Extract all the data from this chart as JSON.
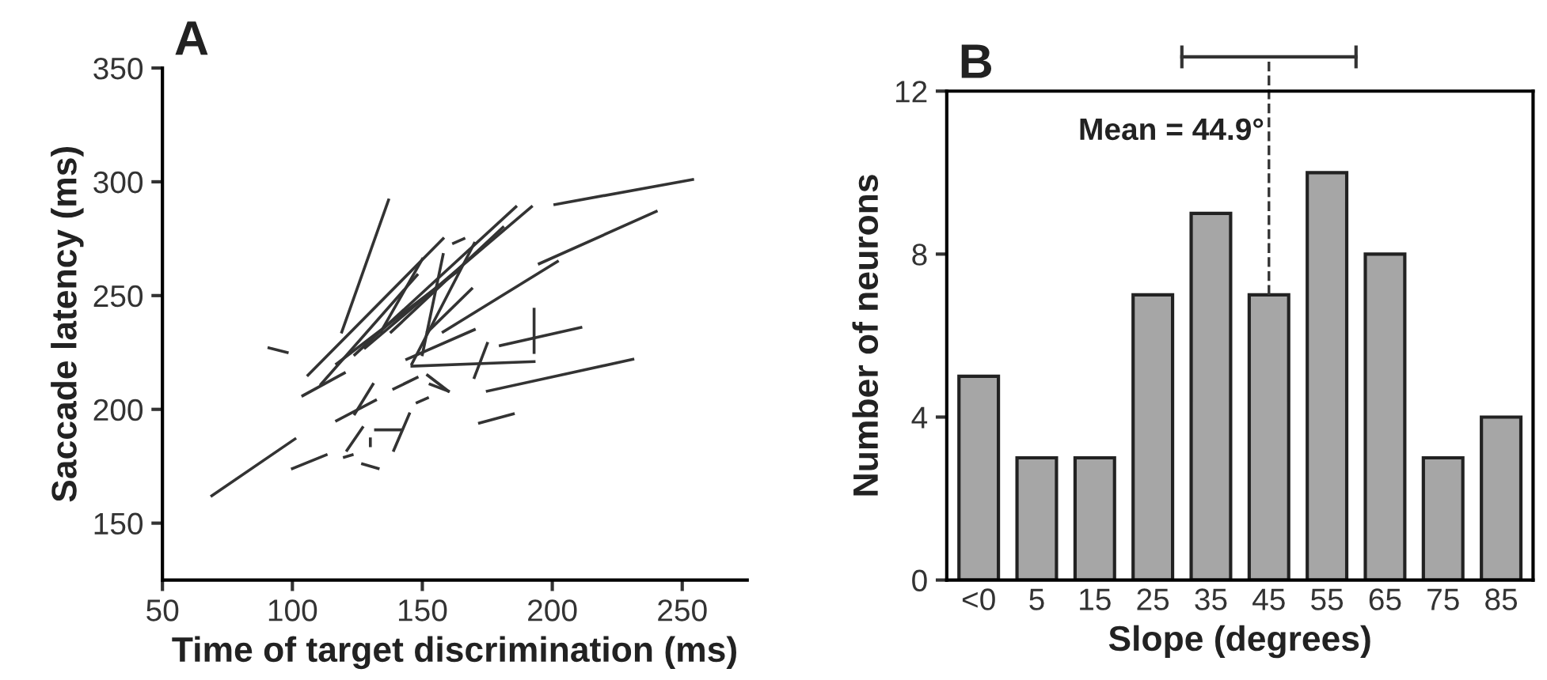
{
  "chart_data": [
    {
      "type": "line",
      "title": "A",
      "xlabel": "Time of target discrimination (ms)",
      "ylabel": "Saccade latency (ms)",
      "xlim": [
        50,
        275
      ],
      "ylim": [
        125,
        350
      ],
      "xticks": [
        50,
        100,
        150,
        200,
        250
      ],
      "yticks": [
        150,
        200,
        250,
        300,
        350
      ],
      "grid": false,
      "legend": false,
      "marker": "none",
      "line_style": "solid",
      "series": [
        {
          "color": "#333333",
          "x": [
            106,
            158
          ],
          "values": [
            215,
            275
          ]
        },
        {
          "color": "#333333",
          "x": [
            111,
            148
          ],
          "values": [
            211,
            259
          ]
        },
        {
          "color": "#333333",
          "x": [
            117,
            164
          ],
          "values": [
            220,
            261
          ]
        },
        {
          "color": "#333333",
          "x": [
            124,
            186
          ],
          "values": [
            224,
            289
          ]
        },
        {
          "color": "#333333",
          "x": [
            128,
            192
          ],
          "values": [
            227,
            289
          ]
        },
        {
          "color": "#333333",
          "x": [
            138,
            181
          ],
          "values": [
            234,
            280
          ]
        },
        {
          "color": "#333333",
          "x": [
            146,
            170
          ],
          "values": [
            220,
            273
          ]
        },
        {
          "color": "#333333",
          "x": [
            150,
            158
          ],
          "values": [
            224,
            268
          ]
        },
        {
          "color": "#333333",
          "x": [
            144,
            170
          ],
          "values": [
            222,
            235
          ]
        },
        {
          "color": "#333333",
          "x": [
            146,
            193
          ],
          "values": [
            219,
            221
          ]
        },
        {
          "color": "#333333",
          "x": [
            158,
            202
          ],
          "values": [
            234,
            265
          ]
        },
        {
          "color": "#333333",
          "x": [
            170,
            175
          ],
          "values": [
            214,
            229
          ]
        },
        {
          "color": "#333333",
          "x": [
            152,
            169
          ],
          "values": [
            234,
            253
          ]
        },
        {
          "color": "#333333",
          "x": [
            134,
            150
          ],
          "values": [
            234,
            266
          ]
        },
        {
          "color": "#333333",
          "x": [
            175,
            231
          ],
          "values": [
            208,
            222
          ]
        },
        {
          "color": "#333333",
          "x": [
            180,
            211
          ],
          "values": [
            228,
            236
          ]
        },
        {
          "color": "#333333",
          "x": [
            193,
            193
          ],
          "values": [
            244,
            225
          ]
        },
        {
          "color": "#333333",
          "x": [
            195,
            240
          ],
          "values": [
            264,
            287
          ]
        },
        {
          "color": "#333333",
          "x": [
            201,
            254
          ],
          "values": [
            290,
            301
          ]
        },
        {
          "color": "#333333",
          "x": [
            172,
            185
          ],
          "values": [
            194,
            198
          ]
        },
        {
          "color": "#333333",
          "x": [
            119,
            137
          ],
          "values": [
            234,
            292
          ]
        },
        {
          "color": "#333333",
          "x": [
            162,
            166
          ],
          "values": [
            273,
            275
          ]
        },
        {
          "color": "#333333",
          "x": [
            152,
            160
          ],
          "values": [
            215,
            208
          ]
        },
        {
          "color": "#333333",
          "x": [
            91,
            98
          ],
          "values": [
            227,
            225
          ]
        },
        {
          "color": "#333333",
          "x": [
            69,
            101
          ],
          "values": [
            162,
            187
          ]
        },
        {
          "color": "#333333",
          "x": [
            100,
            113
          ],
          "values": [
            174,
            180
          ]
        },
        {
          "color": "#333333",
          "x": [
            120,
            123
          ],
          "values": [
            179,
            180
          ]
        },
        {
          "color": "#333333",
          "x": [
            127,
            133
          ],
          "values": [
            176,
            174
          ]
        },
        {
          "color": "#333333",
          "x": [
            121,
            127
          ],
          "values": [
            182,
            192
          ]
        },
        {
          "color": "#333333",
          "x": [
            130,
            130
          ],
          "values": [
            187,
            184
          ]
        },
        {
          "color": "#333333",
          "x": [
            132,
            142
          ],
          "values": [
            191,
            191
          ]
        },
        {
          "color": "#333333",
          "x": [
            139,
            145
          ],
          "values": [
            182,
            198
          ]
        },
        {
          "color": "#333333",
          "x": [
            117,
            132
          ],
          "values": [
            195,
            204
          ]
        },
        {
          "color": "#333333",
          "x": [
            124,
            131
          ],
          "values": [
            198,
            211
          ]
        },
        {
          "color": "#333333",
          "x": [
            148,
            152
          ],
          "values": [
            203,
            205
          ]
        },
        {
          "color": "#333333",
          "x": [
            139,
            148
          ],
          "values": [
            209,
            214
          ]
        },
        {
          "color": "#333333",
          "x": [
            153,
            160
          ],
          "values": [
            211,
            208
          ]
        },
        {
          "color": "#333333",
          "x": [
            104,
            120
          ],
          "values": [
            206,
            216
          ]
        }
      ]
    },
    {
      "type": "bar",
      "title": "B",
      "xlabel": "Slope (degrees)",
      "ylabel": "Number of neurons",
      "categories": [
        "<0",
        "5",
        "15",
        "25",
        "35",
        "45",
        "55",
        "65",
        "75",
        "85"
      ],
      "values": [
        5,
        3,
        3,
        7,
        9,
        7,
        10,
        8,
        3,
        4
      ],
      "color": "#a6a6a6",
      "ylim": [
        0,
        12
      ],
      "yticks": [
        0,
        4,
        8,
        12
      ],
      "grid": false,
      "legend": false,
      "ref_lines": [
        {
          "axis": "x",
          "value": "45",
          "line_style": "dashed",
          "color": "#333333"
        }
      ],
      "annotations": [
        {
          "text": "Mean = 44.9°",
          "x": "45",
          "y": 11
        }
      ]
    }
  ]
}
